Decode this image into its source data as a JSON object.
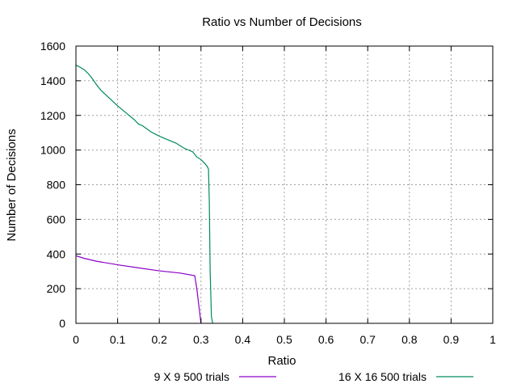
{
  "chart_data": {
    "type": "line",
    "title": "Ratio vs Number of Decisions",
    "xlabel": "Ratio",
    "ylabel": "Number of Decisions",
    "xlim": [
      0,
      1
    ],
    "ylim": [
      0,
      1600
    ],
    "xticks": [
      "0",
      "0.1",
      "0.2",
      "0.3",
      "0.4",
      "0.5",
      "0.6",
      "0.7",
      "0.8",
      "0.9",
      "1"
    ],
    "yticks": [
      "0",
      "200",
      "400",
      "600",
      "800",
      "1000",
      "1200",
      "1400",
      "1600"
    ],
    "grid": true,
    "legend_position": "bottom",
    "series": [
      {
        "name": "9 X 9 500 trials",
        "color": "#8b00c8",
        "x": [
          0.0,
          0.02,
          0.05,
          0.1,
          0.15,
          0.2,
          0.25,
          0.285,
          0.29,
          0.295,
          0.3
        ],
        "y": [
          390,
          375,
          358,
          338,
          320,
          303,
          290,
          275,
          200,
          100,
          0
        ]
      },
      {
        "name": "16 X 16 500 trials",
        "color": "#008a60",
        "x": [
          0.0,
          0.01,
          0.02,
          0.03,
          0.04,
          0.05,
          0.06,
          0.08,
          0.1,
          0.12,
          0.14,
          0.15,
          0.16,
          0.18,
          0.2,
          0.22,
          0.24,
          0.26,
          0.27,
          0.28,
          0.29,
          0.3,
          0.31,
          0.315,
          0.318,
          0.32,
          0.322,
          0.325,
          0.328
        ],
        "y": [
          1490,
          1478,
          1463,
          1440,
          1410,
          1375,
          1345,
          1300,
          1255,
          1215,
          1175,
          1150,
          1140,
          1105,
          1080,
          1060,
          1040,
          1010,
          1000,
          990,
          960,
          945,
          920,
          905,
          890,
          700,
          300,
          40,
          0
        ]
      }
    ]
  }
}
